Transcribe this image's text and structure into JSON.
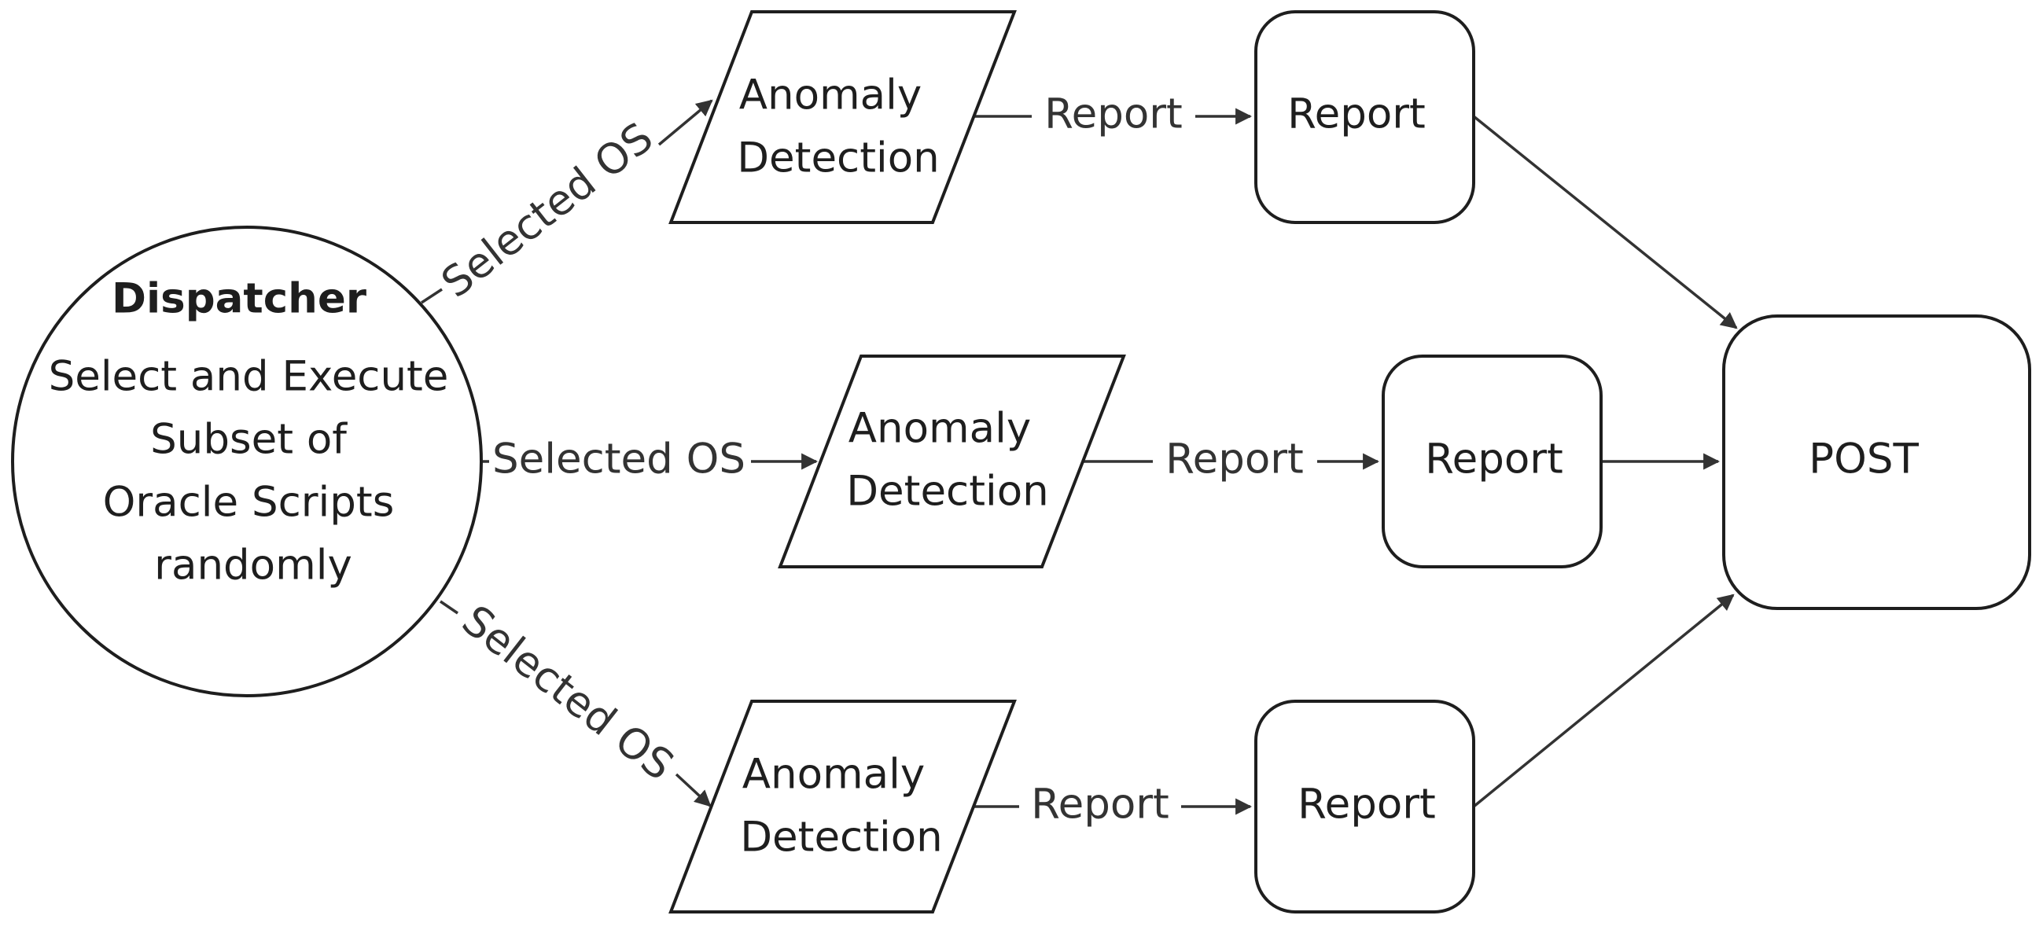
{
  "dispatcher": {
    "title": "Dispatcher",
    "lines": [
      "Select and Execute",
      "Subset of",
      "Oracle Scripts",
      "randomly"
    ]
  },
  "anomaly": {
    "line1": "Anomaly",
    "line2": "Detection"
  },
  "edges": {
    "selected": "Selected OS",
    "report": "Report"
  },
  "report_box": "Report",
  "post_box": "POST"
}
